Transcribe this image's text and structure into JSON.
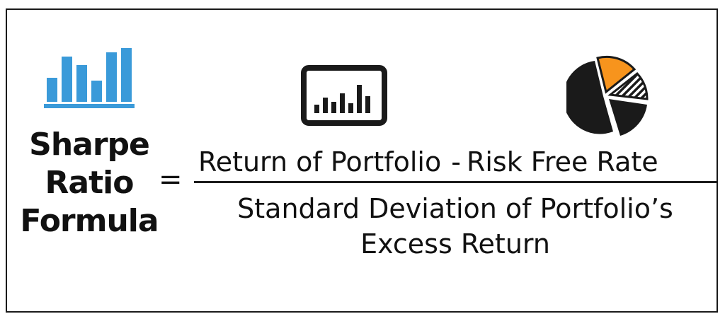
{
  "title": {
    "line1": "Sharpe",
    "line2": "Ratio",
    "line3": "Formula"
  },
  "equals_sign": "=",
  "numerator": {
    "term1": "Return of Portfolio",
    "operator": "-",
    "term2": "Risk Free Rate"
  },
  "denominator": {
    "line1": "Standard Deviation of Portfolio’s",
    "line2": "Excess Return"
  },
  "icons": {
    "left": "bar-chart-icon",
    "center": "monitor-chart-icon",
    "right": "pie-chart-icon"
  },
  "colors": {
    "bar_blue": "#3a9ad9",
    "pie_orange": "#f7941d",
    "ink": "#111111"
  }
}
